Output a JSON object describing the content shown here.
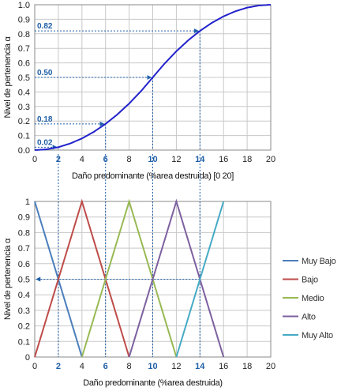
{
  "chart_data": [
    {
      "type": "line",
      "title": "",
      "xlabel": "Daño predominante (%area destruida) [0 20]",
      "ylabel": "Nivel de pertenencia α",
      "xlim": [
        0,
        20
      ],
      "ylim": [
        0,
        1
      ],
      "x_ticks": [
        0,
        2,
        4,
        6,
        8,
        10,
        12,
        14,
        16,
        18,
        20
      ],
      "x_ticks_highlight": [
        2,
        6,
        10,
        14
      ],
      "y_ticks": [
        0.0,
        0.1,
        0.2,
        0.3,
        0.4,
        0.5,
        0.6,
        0.7,
        0.8,
        0.9,
        1.0
      ],
      "y_tick_labels": [
        "0.0",
        "0.1",
        "0.2",
        "0.3",
        "0.4",
        "0.5",
        "0.6",
        "0.7",
        "0.8",
        "0.9",
        "1.0"
      ],
      "grid": true,
      "series": [
        {
          "color": "#2222cc",
          "x": [
            0,
            1,
            2,
            3,
            4,
            5,
            6,
            7,
            8,
            9,
            10,
            11,
            12,
            13,
            14,
            15,
            16,
            17,
            18,
            19,
            20
          ],
          "y": [
            0.0,
            0.005,
            0.02,
            0.045,
            0.08,
            0.125,
            0.18,
            0.245,
            0.32,
            0.405,
            0.5,
            0.595,
            0.68,
            0.755,
            0.82,
            0.875,
            0.92,
            0.955,
            0.98,
            0.995,
            1.0
          ]
        }
      ],
      "annotations": [
        {
          "label": "0.02",
          "x": 2,
          "y": 0.02
        },
        {
          "label": "0.18",
          "x": 6,
          "y": 0.18
        },
        {
          "label": "0.50",
          "x": 10,
          "y": 0.5
        },
        {
          "label": "0.82",
          "x": 14,
          "y": 0.82
        }
      ]
    },
    {
      "type": "line",
      "title": "",
      "xlabel": "Daño predominante (%area destruida)",
      "ylabel": "Nivel de pertenencia α",
      "xlim": [
        0,
        20
      ],
      "ylim": [
        0,
        1
      ],
      "x_ticks": [
        0,
        2,
        4,
        6,
        8,
        10,
        12,
        14,
        16,
        18,
        20
      ],
      "x_ticks_highlight": [
        2,
        6,
        10,
        14
      ],
      "y_ticks": [
        0,
        0.1,
        0.2,
        0.3,
        0.4,
        0.5,
        0.6,
        0.7,
        0.8,
        0.9,
        1
      ],
      "y_tick_labels": [
        "0",
        "0.1",
        "0.2",
        "0.3",
        "0.4",
        "0.5",
        "0.6",
        "0.7",
        "0.8",
        "0.9",
        "1"
      ],
      "grid": true,
      "legend_position": "right",
      "series": [
        {
          "name": "Muy Bajo",
          "color": "#4a7ebb",
          "x": [
            0,
            4
          ],
          "y": [
            1,
            0
          ]
        },
        {
          "name": "Bajo",
          "color": "#be4b48",
          "x": [
            0,
            4,
            8
          ],
          "y": [
            0,
            1,
            0
          ]
        },
        {
          "name": "Medio",
          "color": "#98b954",
          "x": [
            4,
            8,
            12
          ],
          "y": [
            0,
            1,
            0
          ]
        },
        {
          "name": "Alto",
          "color": "#7d60a0",
          "x": [
            8,
            12,
            16
          ],
          "y": [
            0,
            1,
            0
          ]
        },
        {
          "name": "Muy Alto",
          "color": "#46aac5",
          "x": [
            12,
            16
          ],
          "y": [
            0,
            1
          ]
        }
      ],
      "reference_lines": {
        "y": 0.5,
        "x": [
          2,
          6,
          10,
          14
        ]
      }
    }
  ],
  "colors": {
    "guide": "#1f5fa8",
    "grid": "#c8c8c8",
    "axis": "#888888"
  }
}
